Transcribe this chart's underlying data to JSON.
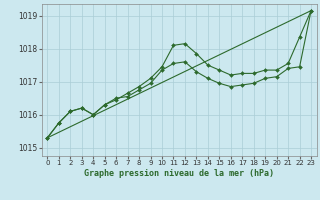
{
  "xlabel": "Graphe pression niveau de la mer (hPa)",
  "ylabel": "",
  "bg_color": "#cce8ef",
  "grid_color": "#aacdd6",
  "line_color": "#2d6a2d",
  "xlim": [
    -0.5,
    23.5
  ],
  "ylim": [
    1014.75,
    1019.35
  ],
  "yticks": [
    1015,
    1016,
    1017,
    1018,
    1019
  ],
  "xticks": [
    0,
    1,
    2,
    3,
    4,
    5,
    6,
    7,
    8,
    9,
    10,
    11,
    12,
    13,
    14,
    15,
    16,
    17,
    18,
    19,
    20,
    21,
    22,
    23
  ],
  "series1": [
    1015.3,
    1015.75,
    1016.1,
    1016.2,
    1016.0,
    1016.3,
    1016.45,
    1016.65,
    1016.85,
    1017.1,
    1017.45,
    1018.1,
    1018.15,
    1017.85,
    1017.5,
    1017.35,
    1017.2,
    1017.25,
    1017.25,
    1017.35,
    1017.35,
    1017.55,
    1018.35,
    1019.15
  ],
  "series2": [
    1015.3,
    1015.75,
    1016.1,
    1016.2,
    1016.0,
    1016.3,
    1016.5,
    1016.55,
    1016.75,
    1016.95,
    1017.35,
    1017.55,
    1017.6,
    1017.3,
    1017.1,
    1016.95,
    1016.85,
    1016.9,
    1016.95,
    1017.1,
    1017.15,
    1017.4,
    1017.45,
    1019.15
  ],
  "series3_x": [
    0,
    23
  ],
  "series3_y": [
    1015.3,
    1019.15
  ]
}
